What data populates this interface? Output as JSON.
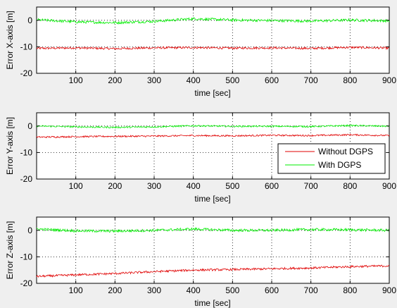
{
  "colors": {
    "without": "#e00000",
    "with": "#00ee00",
    "background": "#efefef",
    "axes": "#ffffff"
  },
  "legend": {
    "placement": "lower-right of middle plot"
  },
  "chart_data": [
    {
      "type": "line",
      "xlabel": "time [sec]",
      "ylabel": "Error X-axis [m]",
      "xlim": [
        0,
        900
      ],
      "ylim": [
        -20,
        5
      ],
      "xticks": [
        "100",
        "200",
        "300",
        "400",
        "500",
        "600",
        "700",
        "800",
        "900"
      ],
      "yticks": [
        "0",
        "-10",
        "-20"
      ],
      "grid": true,
      "series": [
        {
          "name": "Without DGPS",
          "color": "#e00000",
          "x": [
            0,
            100,
            200,
            300,
            400,
            500,
            600,
            700,
            800,
            900
          ],
          "y": [
            -10.6,
            -10.4,
            -10.7,
            -10.4,
            -10.3,
            -10.5,
            -10.4,
            -10.6,
            -10.2,
            -10.5
          ],
          "noise": 0.4
        },
        {
          "name": "With DGPS",
          "color": "#00ee00",
          "x": [
            0,
            100,
            200,
            300,
            400,
            500,
            600,
            700,
            800,
            900
          ],
          "y": [
            0.2,
            -0.6,
            -0.9,
            -0.4,
            0.6,
            0.1,
            -0.1,
            -0.3,
            0.1,
            -0.2
          ],
          "noise": 0.5
        }
      ]
    },
    {
      "type": "line",
      "xlabel": "time [sec]",
      "ylabel": "Error Y-axis [m]",
      "xlim": [
        0,
        900
      ],
      "ylim": [
        -20,
        5
      ],
      "xticks": [
        "100",
        "200",
        "300",
        "400",
        "500",
        "600",
        "700",
        "800",
        "900"
      ],
      "yticks": [
        "0",
        "-10",
        "-20"
      ],
      "grid": true,
      "legend": [
        "Without DGPS",
        "With DGPS"
      ],
      "series": [
        {
          "name": "Without DGPS",
          "color": "#e00000",
          "x": [
            0,
            100,
            200,
            300,
            400,
            500,
            600,
            700,
            800,
            900
          ],
          "y": [
            -4.2,
            -4.0,
            -3.9,
            -3.8,
            -3.6,
            -3.7,
            -3.5,
            -3.6,
            -3.3,
            -3.6
          ],
          "noise": 0.3
        },
        {
          "name": "With DGPS",
          "color": "#00ee00",
          "x": [
            0,
            100,
            200,
            300,
            400,
            500,
            600,
            700,
            800,
            900
          ],
          "y": [
            0.0,
            -0.3,
            -0.5,
            -0.3,
            0.1,
            -0.1,
            -0.1,
            -0.2,
            0.2,
            -0.1
          ],
          "noise": 0.3
        }
      ]
    },
    {
      "type": "line",
      "xlabel": "time [sec]",
      "ylabel": "Error Z-axis [m]",
      "xlim": [
        0,
        900
      ],
      "ylim": [
        -20,
        5
      ],
      "xticks": [
        "100",
        "200",
        "300",
        "400",
        "500",
        "600",
        "700",
        "800",
        "900"
      ],
      "yticks": [
        "0",
        "-10",
        "-20"
      ],
      "grid": true,
      "series": [
        {
          "name": "Without DGPS",
          "color": "#e00000",
          "x": [
            0,
            100,
            200,
            300,
            400,
            500,
            600,
            700,
            800,
            900
          ],
          "y": [
            -17.4,
            -16.8,
            -16.3,
            -15.6,
            -15.0,
            -14.8,
            -14.5,
            -14.2,
            -13.7,
            -13.4
          ],
          "noise": 0.4
        },
        {
          "name": "With DGPS",
          "color": "#00ee00",
          "x": [
            0,
            100,
            200,
            300,
            400,
            500,
            600,
            700,
            800,
            900
          ],
          "y": [
            0.5,
            -0.2,
            -0.3,
            0.0,
            0.5,
            0.0,
            0.0,
            0.3,
            0.2,
            0.0
          ],
          "noise": 0.5
        }
      ]
    }
  ]
}
